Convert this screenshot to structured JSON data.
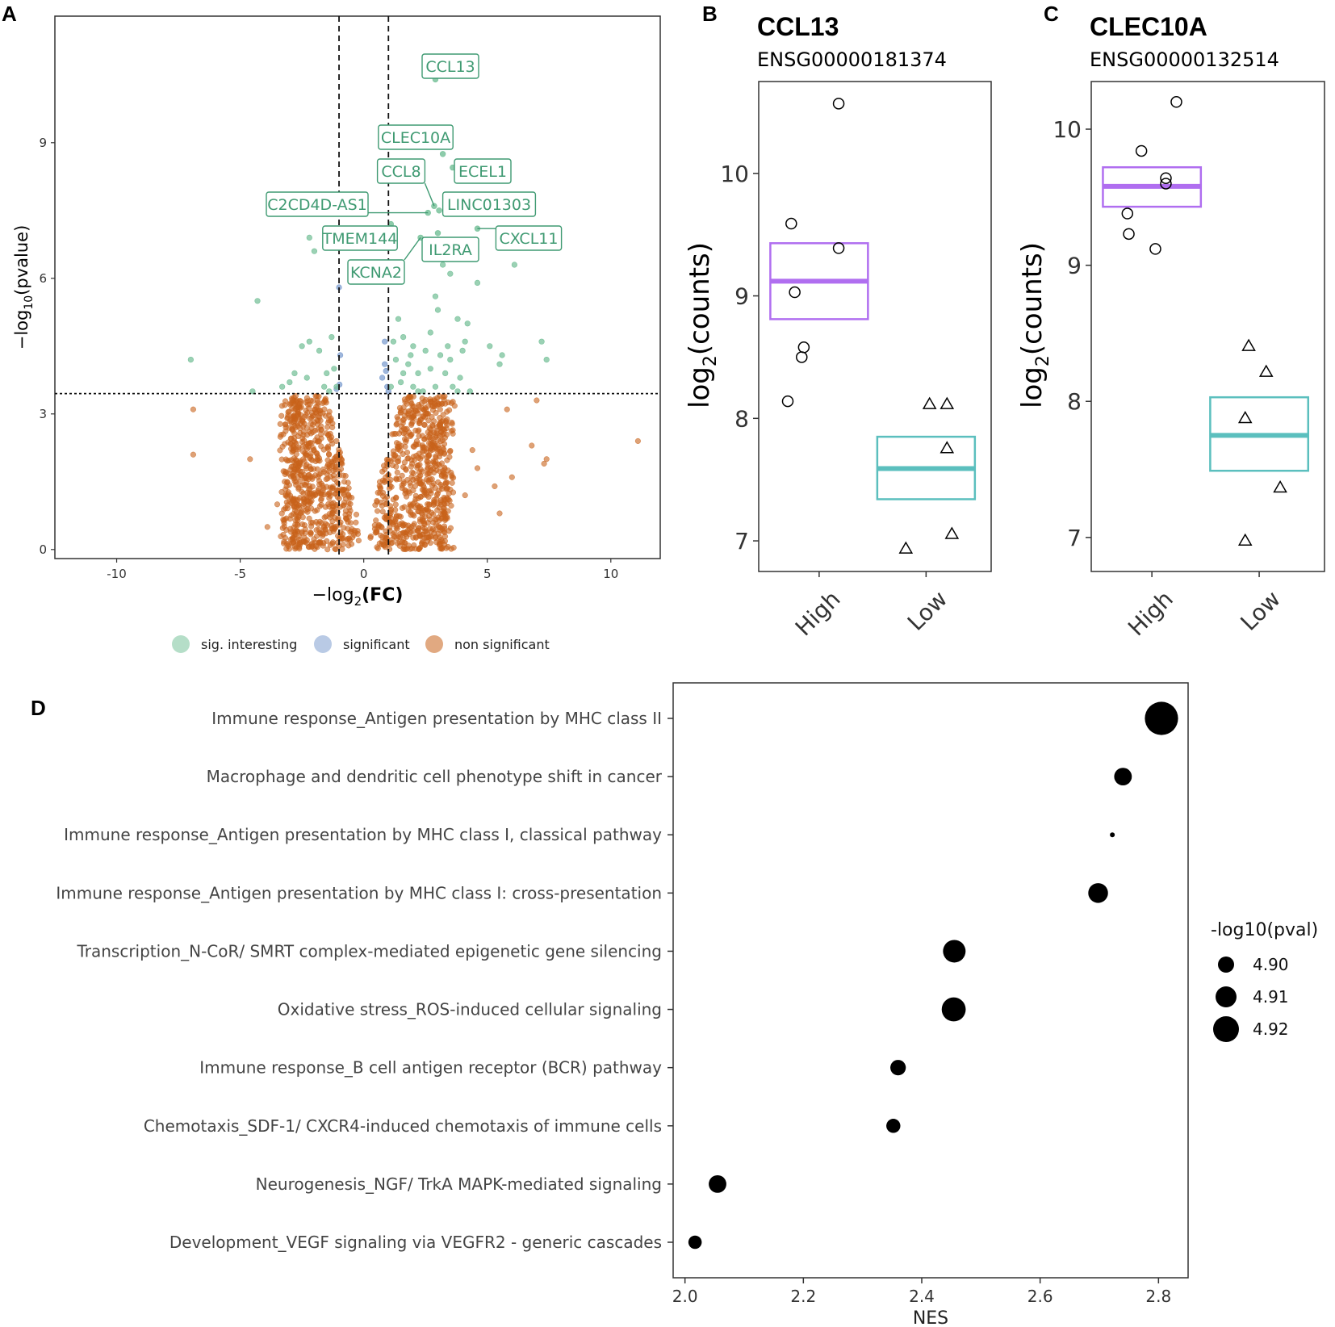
{
  "panels": {
    "A": "A",
    "B": "B",
    "C": "C",
    "D": "D"
  },
  "colors": {
    "sig_interesting": "#79c29b",
    "significant": "#7f9fd0",
    "non_significant": "#c8631a",
    "high": "#b06ef0",
    "low": "#5bbfbe"
  },
  "chart_data": [
    {
      "type": "scatter",
      "panel": "A",
      "title": "",
      "xlabel_prefix": "−log",
      "xlabel_sub": "2",
      "xlabel_suffix": "(FC)",
      "ylabel_prefix": "−log",
      "ylabel_sub": "10",
      "ylabel_suffix": "(pvalue)",
      "xlim": [
        -12.5,
        12
      ],
      "ylim": [
        -0.2,
        11.8
      ],
      "xticks": [
        -10,
        -5,
        0,
        5,
        10
      ],
      "yticks": [
        0,
        3,
        6,
        9
      ],
      "fc_thresholds": [
        -1,
        1
      ],
      "p_threshold": 3.45,
      "legend": [
        {
          "key": "sig_interesting",
          "label": "sig. interesting"
        },
        {
          "key": "significant",
          "label": "significant"
        },
        {
          "key": "non_significant",
          "label": "non significant"
        }
      ],
      "labeled_genes": [
        {
          "gene": "CCL13",
          "x": 2.9,
          "y": 10.4
        },
        {
          "gene": "CLEC10A",
          "x": 3.2,
          "y": 8.75
        },
        {
          "gene": "CCL8",
          "x": 2.85,
          "y": 7.6
        },
        {
          "gene": "ECEL1",
          "x": 3.6,
          "y": 8.45
        },
        {
          "gene": "C2CD4D-AS1",
          "x": 2.6,
          "y": 7.45
        },
        {
          "gene": "LINC01303",
          "x": 3.05,
          "y": 7.5
        },
        {
          "gene": "TMEM144",
          "x": 1.1,
          "y": 7.2
        },
        {
          "gene": "CXCL11",
          "x": 4.6,
          "y": 7.1
        },
        {
          "gene": "IL2RA",
          "x": 3.0,
          "y": 7.0
        },
        {
          "gene": "KCNA2",
          "x": 2.3,
          "y": 6.9
        }
      ],
      "sig_interesting_points": [
        [
          -2.2,
          6.9
        ],
        [
          -2.0,
          6.6
        ],
        [
          -4.3,
          5.5
        ],
        [
          -7.0,
          4.2
        ],
        [
          -2.2,
          4.6
        ],
        [
          -1.8,
          4.4
        ],
        [
          -2.5,
          4.5
        ],
        [
          -1.5,
          3.9
        ],
        [
          -3.0,
          3.7
        ],
        [
          -1.2,
          4.0
        ],
        [
          -1.1,
          3.6
        ],
        [
          -2.8,
          3.9
        ],
        [
          -1.4,
          3.5
        ],
        [
          -3.3,
          3.6
        ],
        [
          -2.3,
          3.8
        ],
        [
          -1.6,
          3.6
        ],
        [
          -4.5,
          3.5
        ],
        [
          -1.3,
          4.7
        ],
        [
          1.4,
          5.1
        ],
        [
          2.5,
          6.6
        ],
        [
          3.2,
          6.3
        ],
        [
          3.5,
          6.1
        ],
        [
          4.6,
          5.9
        ],
        [
          6.1,
          6.3
        ],
        [
          2.9,
          5.6
        ],
        [
          3.8,
          5.1
        ],
        [
          4.2,
          5.0
        ],
        [
          1.2,
          4.6
        ],
        [
          1.6,
          4.7
        ],
        [
          2.0,
          4.5
        ],
        [
          2.5,
          4.4
        ],
        [
          3.1,
          4.3
        ],
        [
          3.5,
          4.2
        ],
        [
          4.1,
          4.6
        ],
        [
          5.1,
          4.5
        ],
        [
          5.6,
          4.3
        ],
        [
          7.2,
          4.6
        ],
        [
          7.4,
          4.2
        ],
        [
          1.3,
          4.2
        ],
        [
          1.8,
          4.1
        ],
        [
          2.2,
          3.9
        ],
        [
          2.7,
          4.0
        ],
        [
          3.3,
          3.9
        ],
        [
          3.9,
          3.8
        ],
        [
          1.1,
          3.6
        ],
        [
          1.5,
          3.7
        ],
        [
          2.0,
          3.6
        ],
        [
          2.4,
          3.5
        ],
        [
          2.9,
          3.6
        ],
        [
          3.6,
          3.6
        ],
        [
          4.3,
          3.5
        ],
        [
          5.5,
          4.1
        ],
        [
          3.0,
          5.3
        ],
        [
          2.7,
          4.8
        ],
        [
          1.9,
          4.3
        ],
        [
          3.4,
          4.5
        ],
        [
          4.0,
          4.4
        ],
        [
          1.6,
          3.9
        ],
        [
          2.2,
          3.5
        ],
        [
          3.8,
          3.5
        ]
      ],
      "significant_points": [
        [
          -1.0,
          5.8
        ],
        [
          -1.1,
          3.55
        ],
        [
          -0.98,
          3.65
        ],
        [
          0.85,
          4.6
        ],
        [
          0.9,
          3.95
        ],
        [
          0.75,
          3.8
        ],
        [
          0.95,
          3.6
        ],
        [
          -0.95,
          4.3
        ],
        [
          0.85,
          4.1
        ],
        [
          1.0,
          3.5
        ]
      ]
    },
    {
      "type": "scatter",
      "panel": "B",
      "title": "CCL13",
      "subtitle": "ENSG00000181374",
      "ylabel_prefix": "log",
      "ylabel_sub": "2",
      "ylabel_suffix": "(counts)",
      "categories": [
        "High",
        "Low"
      ],
      "ylim": [
        6.75,
        10.75
      ],
      "yticks": [
        7,
        8,
        9,
        10
      ],
      "high_points": [
        [
          -0.45,
          8.14
        ],
        [
          -0.4,
          9.59
        ],
        [
          -0.35,
          9.03
        ],
        [
          -0.25,
          8.5
        ],
        [
          -0.22,
          8.58
        ],
        [
          0.28,
          10.57
        ],
        [
          0.28,
          9.39
        ]
      ],
      "low_points": [
        [
          -0.29,
          6.94
        ],
        [
          0.05,
          8.12
        ],
        [
          0.3,
          8.12
        ],
        [
          0.3,
          7.76
        ],
        [
          0.37,
          7.06
        ]
      ],
      "high_box": {
        "center": 9.12,
        "lower": 8.81,
        "upper": 9.43
      },
      "low_box": {
        "center": 7.59,
        "lower": 7.34,
        "upper": 7.85
      }
    },
    {
      "type": "scatter",
      "panel": "C",
      "title": "CLEC10A",
      "subtitle": "ENSG00000132514",
      "ylabel_prefix": "log",
      "ylabel_sub": "2",
      "ylabel_suffix": "(counts)",
      "categories": [
        "High",
        "Low"
      ],
      "ylim": [
        6.75,
        10.35
      ],
      "yticks": [
        7,
        8,
        9,
        10
      ],
      "high_points": [
        [
          -0.35,
          9.38
        ],
        [
          -0.33,
          9.23
        ],
        [
          -0.15,
          9.84
        ],
        [
          0.05,
          9.12
        ],
        [
          0.2,
          9.64
        ],
        [
          0.2,
          9.6
        ],
        [
          0.35,
          10.2
        ]
      ],
      "low_points": [
        [
          -0.2,
          6.98
        ],
        [
          -0.15,
          8.41
        ],
        [
          -0.2,
          7.88
        ],
        [
          0.1,
          8.22
        ],
        [
          0.3,
          7.37
        ]
      ],
      "high_box": {
        "center": 9.58,
        "lower": 9.43,
        "upper": 9.72
      },
      "low_box": {
        "center": 7.75,
        "lower": 7.49,
        "upper": 8.03
      }
    },
    {
      "type": "scatter",
      "panel": "D",
      "xlabel": "NES",
      "xlim": [
        1.98,
        2.85
      ],
      "xticks": [
        "2.0",
        "2.2",
        "2.4",
        "2.6",
        "2.8"
      ],
      "size_legend_title": "-log10(pval)",
      "size_legend": [
        {
          "label": "4.90",
          "value": 4.9
        },
        {
          "label": "4.91",
          "value": 4.91
        },
        {
          "label": "4.92",
          "value": 4.92
        }
      ],
      "pathways": [
        {
          "name": "Immune response_Antigen presentation by MHC class II",
          "nes": 2.805,
          "logp": 4.925
        },
        {
          "name": "Macrophage and dendritic cell phenotype shift in cancer",
          "nes": 2.74,
          "logp": 4.903
        },
        {
          "name": "Immune response_Antigen presentation by MHC class I, classical pathway",
          "nes": 2.722,
          "logp": 4.885
        },
        {
          "name": "Immune response_Antigen presentation by MHC class I: cross-presentation",
          "nes": 2.698,
          "logp": 4.906
        },
        {
          "name": "Transcription_N-CoR/ SMRT complex-mediated epigenetic gene silencing",
          "nes": 2.455,
          "logp": 4.91
        },
        {
          "name": "Oxidative stress_ROS-induced cellular signaling",
          "nes": 2.454,
          "logp": 4.912
        },
        {
          "name": "Immune response_B cell antigen receptor (BCR) pathway",
          "nes": 2.36,
          "logp": 4.9
        },
        {
          "name": "Chemotaxis_SDF-1/ CXCR4-induced chemotaxis of immune cells",
          "nes": 2.352,
          "logp": 4.898
        },
        {
          "name": "Neurogenesis_NGF/ TrkA MAPK-mediated signaling",
          "nes": 2.055,
          "logp": 4.903
        },
        {
          "name": "Development_VEGF signaling via VEGFR2 - generic cascades",
          "nes": 2.017,
          "logp": 4.897
        }
      ]
    }
  ]
}
